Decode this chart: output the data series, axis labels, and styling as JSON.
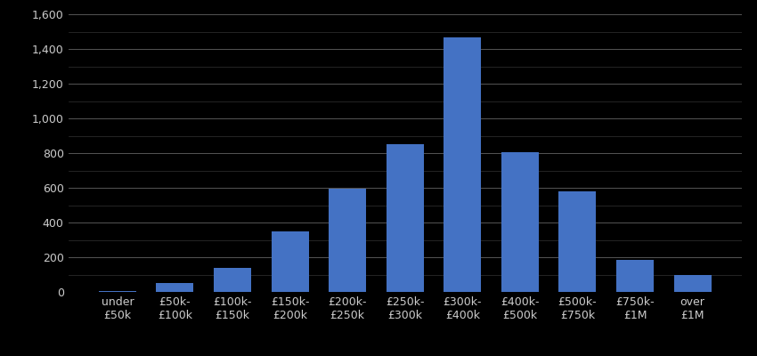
{
  "categories": [
    "under\n£50k",
    "£50k-\n£100k",
    "£100k-\n£150k",
    "£150k-\n£200k",
    "£200k-\n£250k",
    "£250k-\n£300k",
    "£300k-\n£400k",
    "£400k-\n£500k",
    "£500k-\n£750k",
    "£750k-\n£1M",
    "over\n£1M"
  ],
  "values": [
    7,
    52,
    136,
    347,
    596,
    850,
    1465,
    805,
    580,
    185,
    100
  ],
  "bar_color": "#4472C4",
  "background_color": "#000000",
  "text_color": "#cccccc",
  "grid_color_major": "#555555",
  "grid_color_minor": "#333333",
  "ylim": [
    0,
    1600
  ],
  "yticks_major": [
    0,
    200,
    400,
    600,
    800,
    1000,
    1200,
    1400,
    1600
  ],
  "yticks_minor": [
    100,
    300,
    500,
    700,
    900,
    1100,
    1300,
    1500
  ],
  "tick_fontsize": 9,
  "bar_width": 0.65
}
